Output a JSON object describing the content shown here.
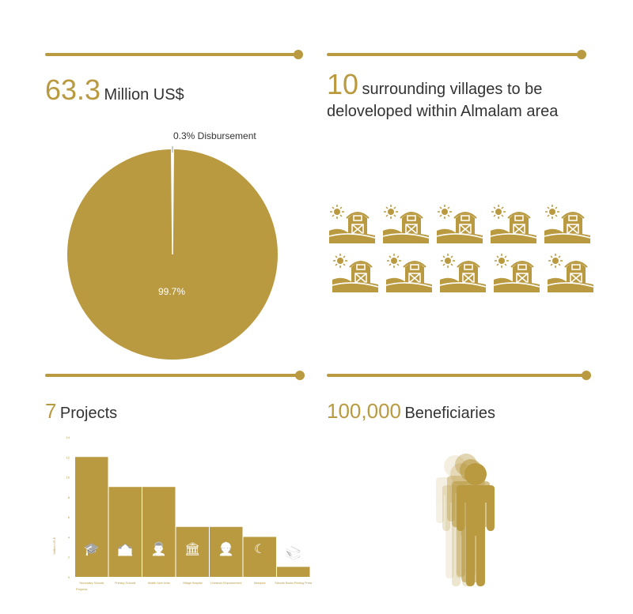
{
  "colors": {
    "accent": "#b99a40",
    "light": "#efe8d6"
  },
  "funding": {
    "value": "63.3",
    "unit": "Million US$"
  },
  "villages": {
    "value": "10",
    "text_line1": "surrounding villages to be",
    "text_line2": "deloveloped within Almalam area",
    "count": 10,
    "icon": "barn-icon"
  },
  "projects": {
    "value": "7",
    "unit": "Projects"
  },
  "beneficiaries": {
    "value": "100,000",
    "unit": "Beneficiaries",
    "icon": "person-icon"
  },
  "chart_data": [
    {
      "type": "pie",
      "slices": [
        {
          "label": "0.3% Disbursement",
          "value": 0.3
        },
        {
          "label": "99.7%",
          "value": 99.7
        }
      ]
    },
    {
      "type": "bar",
      "categories": [
        "Secondary Schools",
        "Primary Schools",
        "Health Care Units",
        "Village Hospital",
        "Livestock Empowerment",
        "Mosques",
        "Schools Books Printing Press"
      ],
      "values": [
        12,
        9,
        9,
        5,
        5,
        4,
        1
      ],
      "ylabel": "Million US $",
      "xlabel": "Projects",
      "ylim": [
        0,
        14
      ],
      "yticks": [
        "0",
        "2",
        "4",
        "6",
        "8",
        "10",
        "12",
        "14"
      ],
      "icons": [
        "graduation-cap-icon",
        "school-icon",
        "doctor-icon",
        "hospital-icon",
        "worker-icon",
        "crescent-icon",
        "books-icon"
      ]
    }
  ]
}
